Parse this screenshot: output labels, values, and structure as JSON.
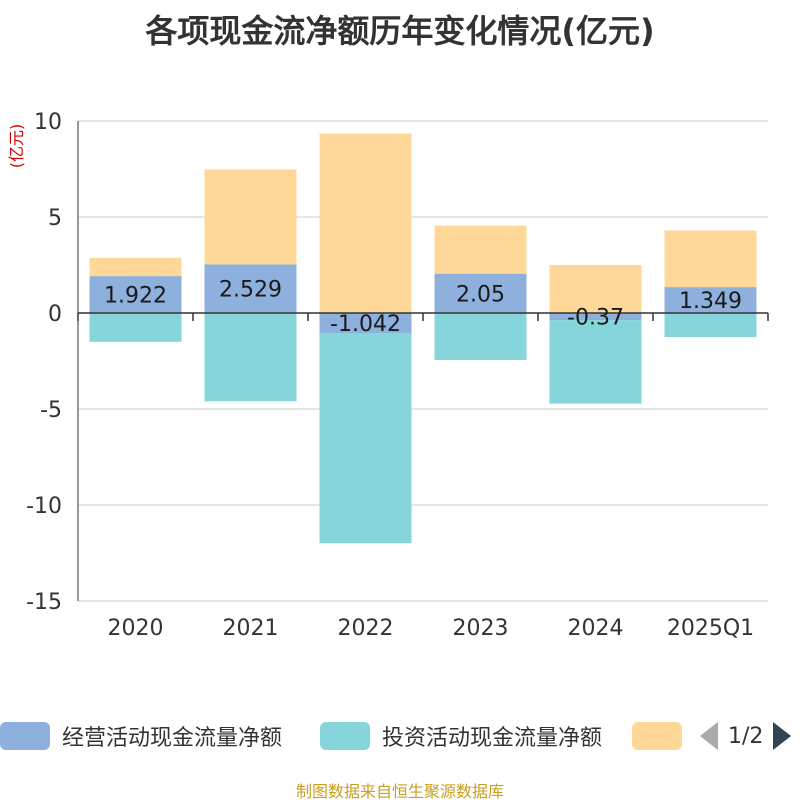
{
  "title": "各项现金流净额历年变化情况(亿元)",
  "source": "制图数据来自恒生聚源数据库",
  "legend": {
    "items": [
      {
        "label": "经营活动现金流量净额",
        "color": "#8eb0dc"
      },
      {
        "label": "投资活动现金流量净额",
        "color": "#86d5da"
      },
      {
        "label": "",
        "color": "#fed898"
      }
    ],
    "page": "1/2"
  },
  "chart_data": {
    "type": "bar",
    "stacked": true,
    "categories": [
      "2020",
      "2021",
      "2022",
      "2023",
      "2024",
      "2025Q1"
    ],
    "ylabel": "(亿元)",
    "ylim": [
      -15,
      10
    ],
    "yticks": [
      10,
      5,
      0,
      -5,
      -10,
      -15
    ],
    "grid": true,
    "legend_position": "bottom",
    "series": [
      {
        "name": "经营活动现金流量净额",
        "color": "#8eb0dc",
        "values": [
          1.922,
          2.529,
          -1.042,
          2.05,
          -0.37,
          1.349
        ],
        "labels": [
          "1.922",
          "2.529",
          "-1.042",
          "2.05",
          "-0.37",
          "1.349"
        ]
      },
      {
        "name": "投资活动现金流量净额",
        "color": "#86d5da",
        "values": [
          -1.5,
          -4.6,
          -10.95,
          -2.45,
          -4.35,
          -1.25
        ]
      },
      {
        "color": "#fed898",
        "values": [
          0.95,
          4.95,
          9.35,
          2.5,
          2.5,
          2.95
        ]
      }
    ]
  }
}
